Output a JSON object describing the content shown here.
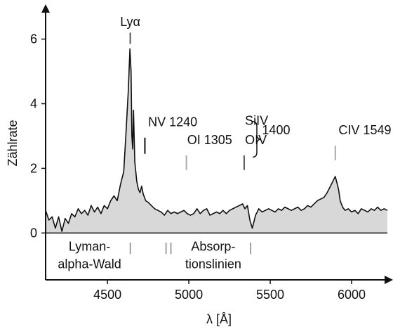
{
  "chart_data": {
    "type": "area",
    "xlabel": "λ [Å]",
    "ylabel": "Zählrate",
    "xlim": [
      4120,
      6220
    ],
    "ylim": [
      -1.45,
      6.6
    ],
    "x_ticks": [
      4500,
      5000,
      5500,
      6000
    ],
    "y_ticks": [
      0,
      2,
      4,
      6
    ],
    "x_tick_labels": [
      "4500",
      "5000",
      "5500",
      "6000"
    ],
    "y_tick_labels": [
      "0",
      "2",
      "4",
      "6"
    ],
    "grid": false,
    "fill_color": "#d8d8d8",
    "line_color": "#111111",
    "series": [
      {
        "x": [
          4120,
          4140,
          4160,
          4180,
          4200,
          4220,
          4240,
          4260,
          4280,
          4300,
          4320,
          4340,
          4360,
          4380,
          4400,
          4420,
          4440,
          4460,
          4480,
          4500,
          4520,
          4540,
          4560,
          4580,
          4600,
          4615,
          4628,
          4638,
          4645,
          4650,
          4655,
          4660,
          4668,
          4680,
          4690,
          4700,
          4710,
          4720,
          4735,
          4750,
          4770,
          4790,
          4810,
          4830,
          4850,
          4870,
          4890,
          4910,
          4930,
          4950,
          4970,
          4990,
          5010,
          5030,
          5050,
          5070,
          5090,
          5110,
          5130,
          5150,
          5170,
          5190,
          5210,
          5230,
          5250,
          5270,
          5290,
          5310,
          5330,
          5345,
          5360,
          5375,
          5390,
          5410,
          5430,
          5450,
          5470,
          5490,
          5510,
          5530,
          5550,
          5570,
          5590,
          5610,
          5630,
          5650,
          5670,
          5690,
          5710,
          5730,
          5750,
          5770,
          5790,
          5810,
          5830,
          5850,
          5870,
          5885,
          5900,
          5910,
          5920,
          5930,
          5945,
          5960,
          5980,
          6000,
          6020,
          6040,
          6060,
          6080,
          6100,
          6120,
          6140,
          6160,
          6180,
          6200,
          6220
        ],
        "y": [
          0.7,
          0.4,
          0.5,
          0.15,
          0.5,
          0.05,
          0.45,
          0.3,
          0.6,
          0.5,
          0.75,
          0.6,
          0.7,
          0.55,
          0.85,
          0.65,
          0.8,
          0.6,
          0.85,
          0.75,
          1.0,
          1.15,
          1.0,
          1.5,
          1.9,
          3.2,
          4.4,
          5.7,
          5.0,
          3.0,
          2.6,
          3.8,
          2.2,
          1.6,
          1.35,
          1.25,
          1.45,
          1.2,
          1.0,
          0.95,
          0.85,
          0.75,
          0.7,
          0.65,
          0.55,
          0.7,
          0.6,
          0.65,
          0.6,
          0.65,
          0.7,
          0.6,
          0.55,
          0.6,
          0.75,
          0.6,
          0.7,
          0.75,
          0.55,
          0.6,
          0.65,
          0.6,
          0.7,
          0.6,
          0.7,
          0.75,
          0.8,
          0.85,
          0.9,
          0.75,
          0.85,
          0.4,
          0.15,
          0.55,
          0.75,
          0.65,
          0.7,
          0.75,
          0.7,
          0.65,
          0.75,
          0.7,
          0.8,
          0.75,
          0.7,
          0.75,
          0.8,
          0.7,
          0.75,
          0.85,
          0.8,
          0.9,
          1.0,
          1.05,
          1.1,
          1.25,
          1.45,
          1.6,
          1.75,
          1.55,
          1.35,
          1.0,
          0.8,
          0.7,
          0.75,
          0.65,
          0.7,
          0.6,
          0.75,
          0.7,
          0.65,
          0.75,
          0.7,
          0.8,
          0.7,
          0.75,
          0.7
        ]
      }
    ],
    "annotations": [
      {
        "text": "Lyα",
        "x": 4640,
        "y": 6.4,
        "marker_x": 4640,
        "marker_y0": 5.85,
        "marker_y1": 6.2,
        "marker_color": "#555555"
      },
      {
        "text": "NV 1240",
        "x": 4750,
        "y": 3.3,
        "marker_x": 4730,
        "marker_y0": 2.45,
        "marker_y1": 2.95,
        "marker_color": "#111111"
      },
      {
        "text": "OI 1305",
        "x": 4990,
        "y": 2.75,
        "marker_x": 4985,
        "marker_y0": 1.95,
        "marker_y1": 2.4,
        "marker_color": "#aaaaaa"
      },
      {
        "text": "SiIV",
        "x": 5345,
        "y": 3.35,
        "marker_x": 5340,
        "marker_y0": 1.95,
        "marker_y1": 2.4,
        "marker_color": "#555555"
      },
      {
        "text": "OIV",
        "x": 5345,
        "y": 2.75
      },
      {
        "text": "1400",
        "x": 5450,
        "y": 3.05
      },
      {
        "text": "CIV 1549",
        "x": 5920,
        "y": 3.05,
        "marker_x": 5900,
        "marker_y0": 2.25,
        "marker_y1": 2.7,
        "marker_color": "#aaaaaa"
      }
    ],
    "absorption_ticks": [
      {
        "x": 4640,
        "color": "#888888"
      },
      {
        "x": 4860,
        "color": "#888888"
      },
      {
        "x": 4890,
        "color": "#888888"
      },
      {
        "x": 5380,
        "color": "#888888"
      }
    ],
    "region_labels": [
      {
        "lines": [
          "Lyman-",
          "alpha-Wald"
        ],
        "x": 4390
      },
      {
        "lines": [
          "Absorp-",
          "tionslinien"
        ],
        "x": 5150
      }
    ]
  }
}
